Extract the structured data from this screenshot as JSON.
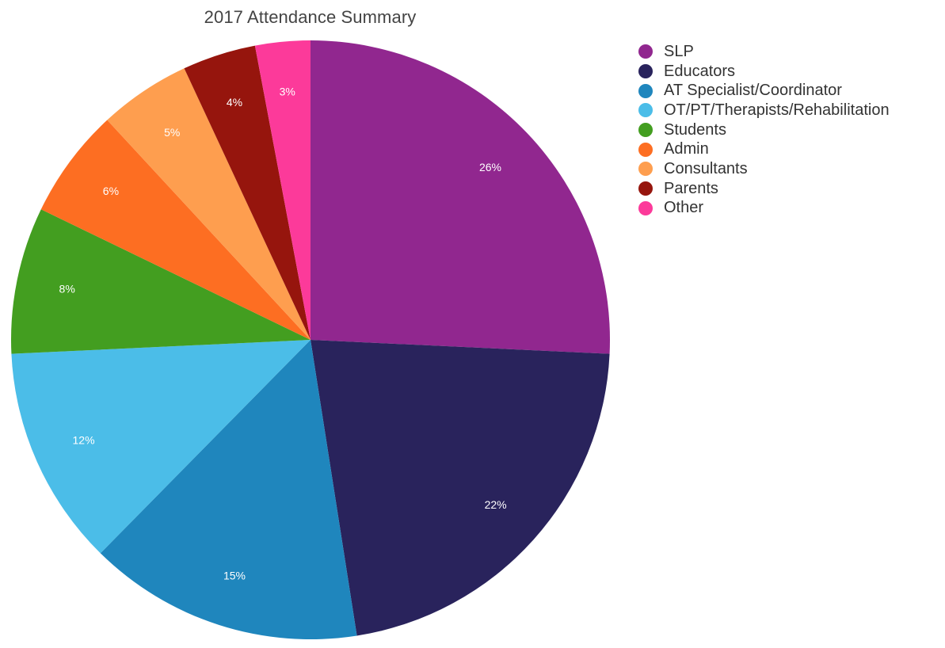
{
  "chart_data": {
    "type": "pie",
    "title": "2017 Attendance Summary",
    "legend_position": "top-right",
    "start_angle_note": "",
    "slices": [
      {
        "name": "SLP",
        "value": 26,
        "label": "26%",
        "color": "#91278F"
      },
      {
        "name": "Educators",
        "value": 22,
        "label": "22%",
        "color": "#29235C"
      },
      {
        "name": "AT Specialist/Coordinator",
        "value": 15,
        "label": "15%",
        "color": "#1F86BD"
      },
      {
        "name": "OT/PT/Therapists/Rehabilitation",
        "value": 12,
        "label": "12%",
        "color": "#4BBDE8"
      },
      {
        "name": "Students",
        "value": 8,
        "label": "8%",
        "color": "#439E20"
      },
      {
        "name": "Admin",
        "value": 6,
        "label": "6%",
        "color": "#FD6E22"
      },
      {
        "name": "Consultants",
        "value": 5,
        "label": "5%",
        "color": "#FE9E4F"
      },
      {
        "name": "Parents",
        "value": 4,
        "label": "4%",
        "color": "#96150D"
      },
      {
        "name": "Other",
        "value": 3,
        "label": "3%",
        "color": "#FC3A9A"
      }
    ]
  }
}
